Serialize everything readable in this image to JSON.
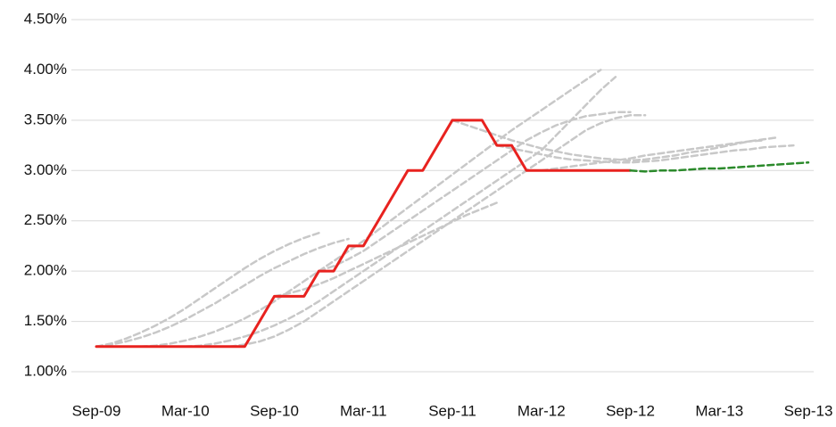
{
  "chart_data": {
    "type": "line",
    "categories": [
      "Sep-09",
      null,
      null,
      null,
      null,
      null,
      "Mar-10",
      null,
      null,
      null,
      null,
      null,
      "Sep-10",
      null,
      null,
      null,
      null,
      null,
      "Mar-11",
      null,
      null,
      null,
      null,
      null,
      "Sep-11",
      null,
      null,
      null,
      null,
      null,
      "Mar-12",
      null,
      null,
      null,
      null,
      null,
      "Sep-12",
      null,
      null,
      null,
      null,
      null,
      "Mar-13",
      null,
      null,
      null,
      null,
      null,
      "Sep-13"
    ],
    "ylim": [
      1,
      4.5
    ],
    "yticks": [
      {
        "value": 1,
        "label": "1.00%"
      },
      {
        "value": 1.5,
        "label": "1.50%"
      },
      {
        "value": 2,
        "label": "2.00%"
      },
      {
        "value": 2.5,
        "label": "2.50%"
      },
      {
        "value": 3,
        "label": "3.00%"
      },
      {
        "value": 3.5,
        "label": "3.50%"
      },
      {
        "value": 4,
        "label": "4.00%"
      },
      {
        "value": 4.5,
        "label": "4.50%"
      }
    ],
    "grid": true,
    "series": [
      {
        "color": "#c8c8c8",
        "style": "dashed",
        "values": [
          1.25,
          1.28,
          1.33,
          1.39,
          1.46,
          1.54,
          1.63,
          1.73,
          1.83,
          1.93,
          2.03,
          2.12,
          2.2,
          2.27,
          2.33,
          2.38,
          null,
          null,
          null,
          null,
          null,
          null,
          null,
          null,
          null,
          null,
          null,
          null,
          null,
          null,
          null,
          null,
          null,
          null,
          null,
          null,
          null,
          null,
          null,
          null,
          null,
          null,
          null,
          null,
          null,
          null,
          null,
          null,
          null
        ]
      },
      {
        "color": "#c8c8c8",
        "style": "dashed",
        "values": [
          1.25,
          1.27,
          1.3,
          1.34,
          1.39,
          1.45,
          1.52,
          1.6,
          1.68,
          1.77,
          1.86,
          1.95,
          2.03,
          2.1,
          2.17,
          2.23,
          2.28,
          2.32,
          null,
          null,
          null,
          null,
          null,
          null,
          null,
          null,
          null,
          null,
          null,
          null,
          null,
          null,
          null,
          null,
          null,
          null,
          null,
          null,
          null,
          null,
          null,
          null,
          null,
          null,
          null,
          null,
          null,
          null,
          null
        ]
      },
      {
        "color": "#c8c8c8",
        "style": "dashed",
        "values": [
          null,
          null,
          null,
          1.25,
          1.26,
          1.28,
          1.31,
          1.35,
          1.4,
          1.46,
          1.53,
          1.61,
          1.7,
          1.8,
          1.9,
          2.0,
          2.1,
          2.2,
          2.3,
          2.41,
          2.52,
          2.63,
          2.74,
          2.85,
          2.96,
          3.07,
          3.18,
          3.29,
          3.4,
          3.5,
          3.6,
          3.7,
          3.8,
          3.9,
          4.0,
          null,
          null,
          null,
          null,
          null,
          null,
          null,
          null,
          null,
          null,
          null,
          null,
          null,
          null
        ]
      },
      {
        "color": "#c8c8c8",
        "style": "dashed",
        "values": [
          null,
          null,
          null,
          null,
          null,
          null,
          1.25,
          1.26,
          1.28,
          1.31,
          1.35,
          1.4,
          1.46,
          1.53,
          1.61,
          1.7,
          1.8,
          1.9,
          2.0,
          2.1,
          2.2,
          2.3,
          2.4,
          2.5,
          2.6,
          2.7,
          2.8,
          2.9,
          3.0,
          3.1,
          3.2,
          3.35,
          3.5,
          3.65,
          3.8,
          3.93,
          null,
          null,
          null,
          null,
          null,
          null,
          null,
          null,
          null,
          null,
          null,
          null,
          null
        ]
      },
      {
        "color": "#c8c8c8",
        "style": "dashed",
        "values": [
          null,
          null,
          null,
          null,
          null,
          null,
          null,
          null,
          null,
          1.25,
          1.27,
          1.3,
          1.35,
          1.42,
          1.5,
          1.6,
          1.7,
          1.8,
          1.9,
          2.0,
          2.1,
          2.2,
          2.3,
          2.4,
          2.5,
          2.6,
          2.7,
          2.8,
          2.9,
          3.0,
          3.1,
          3.2,
          3.3,
          3.4,
          3.47,
          3.52,
          3.55,
          3.55,
          null,
          null,
          null,
          null,
          null,
          null,
          null,
          null,
          null,
          null,
          null
        ]
      },
      {
        "color": "#c8c8c8",
        "style": "dashed",
        "values": [
          null,
          null,
          null,
          null,
          null,
          null,
          null,
          null,
          null,
          null,
          null,
          null,
          1.75,
          1.78,
          1.82,
          1.87,
          1.93,
          2.0,
          2.07,
          2.14,
          2.21,
          2.28,
          2.35,
          2.42,
          2.49,
          2.56,
          2.62,
          2.68,
          null,
          null,
          null,
          null,
          null,
          null,
          null,
          null,
          null,
          null,
          null,
          null,
          null,
          null,
          null,
          null,
          null,
          null,
          null,
          null,
          null
        ]
      },
      {
        "color": "#c8c8c8",
        "style": "dashed",
        "values": [
          null,
          null,
          null,
          null,
          null,
          null,
          null,
          null,
          null,
          null,
          null,
          null,
          null,
          null,
          null,
          2.0,
          2.05,
          2.12,
          2.2,
          2.3,
          2.4,
          2.5,
          2.6,
          2.7,
          2.8,
          2.9,
          3.0,
          3.1,
          3.2,
          3.3,
          3.38,
          3.45,
          3.5,
          3.54,
          3.56,
          3.58,
          3.58,
          null,
          null,
          null,
          null,
          null,
          null,
          null,
          null,
          null,
          null,
          null,
          null
        ]
      },
      {
        "color": "#c8c8c8",
        "style": "dashed",
        "values": [
          null,
          null,
          null,
          null,
          null,
          null,
          null,
          null,
          null,
          null,
          null,
          null,
          null,
          null,
          null,
          null,
          null,
          null,
          null,
          null,
          null,
          null,
          null,
          null,
          3.5,
          3.45,
          3.4,
          3.35,
          3.3,
          3.26,
          3.22,
          3.19,
          3.16,
          3.14,
          3.12,
          3.11,
          3.1,
          3.11,
          3.13,
          3.15,
          3.18,
          3.2,
          3.23,
          3.26,
          3.29,
          3.31,
          3.33,
          null,
          null
        ]
      },
      {
        "color": "#c8c8c8",
        "style": "dashed",
        "values": [
          null,
          null,
          null,
          null,
          null,
          null,
          null,
          null,
          null,
          null,
          null,
          null,
          null,
          null,
          null,
          null,
          null,
          null,
          null,
          null,
          null,
          null,
          null,
          null,
          null,
          null,
          null,
          3.25,
          3.22,
          3.19,
          3.16,
          3.13,
          3.11,
          3.1,
          3.09,
          3.08,
          3.08,
          3.09,
          3.1,
          3.12,
          3.14,
          3.16,
          3.18,
          3.2,
          3.21,
          3.23,
          3.24,
          3.25,
          null
        ]
      },
      {
        "color": "#c8c8c8",
        "style": "dashed",
        "values": [
          null,
          null,
          null,
          null,
          null,
          null,
          null,
          null,
          null,
          null,
          null,
          null,
          null,
          null,
          null,
          null,
          null,
          null,
          null,
          null,
          null,
          null,
          null,
          null,
          null,
          null,
          null,
          null,
          null,
          null,
          3.0,
          3.02,
          3.04,
          3.06,
          3.08,
          3.1,
          3.12,
          3.15,
          3.17,
          3.19,
          3.21,
          3.23,
          3.25,
          3.27,
          3.29,
          3.3,
          null,
          null,
          null
        ]
      },
      {
        "color": "#e8221f",
        "style": "solid",
        "values": [
          1.25,
          1.25,
          1.25,
          1.25,
          1.25,
          1.25,
          1.25,
          1.25,
          1.25,
          1.25,
          1.25,
          1.5,
          1.75,
          1.75,
          1.75,
          2.0,
          2.0,
          2.25,
          2.25,
          2.5,
          2.75,
          3.0,
          3.0,
          3.25,
          3.5,
          3.5,
          3.5,
          3.25,
          3.25,
          3.0,
          3.0,
          3.0,
          3.0,
          3.0,
          3.0,
          3.0,
          3.0,
          null,
          null,
          null,
          null,
          null,
          null,
          null,
          null,
          null,
          null,
          null,
          null
        ]
      },
      {
        "color": "#2b8a2b",
        "style": "dashed",
        "values": [
          null,
          null,
          null,
          null,
          null,
          null,
          null,
          null,
          null,
          null,
          null,
          null,
          null,
          null,
          null,
          null,
          null,
          null,
          null,
          null,
          null,
          null,
          null,
          null,
          null,
          null,
          null,
          null,
          null,
          null,
          null,
          null,
          null,
          null,
          null,
          null,
          3.0,
          2.99,
          3.0,
          3.0,
          3.01,
          3.02,
          3.02,
          3.03,
          3.04,
          3.05,
          3.06,
          3.07,
          3.08
        ]
      }
    ]
  }
}
